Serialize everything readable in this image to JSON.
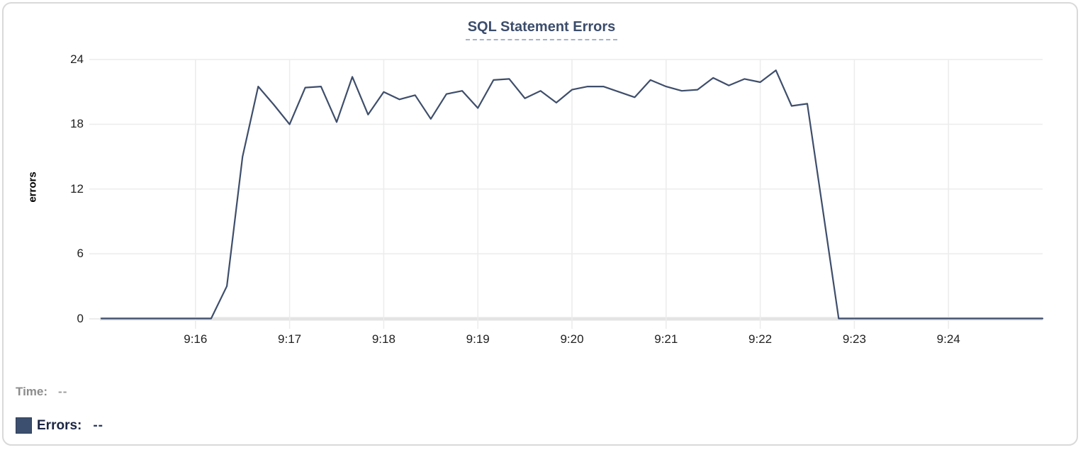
{
  "chart_data": {
    "type": "line",
    "title": "SQL Statement Errors",
    "xlabel": "",
    "ylabel": "errors",
    "ylim": [
      0,
      24
    ],
    "y_ticks": [
      0,
      6,
      12,
      18,
      24
    ],
    "x_ticks": [
      "9:16",
      "9:17",
      "9:18",
      "9:19",
      "9:20",
      "9:21",
      "9:22",
      "9:23",
      "9:24"
    ],
    "x_start": "9:15:00",
    "x_end": "9:25:00",
    "grid": true,
    "legend_position": "bottom-left",
    "series": [
      {
        "name": "Errors",
        "color": "#3e4e6b",
        "times": [
          "9:15:00",
          "9:15:10",
          "9:15:20",
          "9:15:30",
          "9:15:40",
          "9:15:50",
          "9:16:00",
          "9:16:10",
          "9:16:20",
          "9:16:30",
          "9:16:40",
          "9:16:50",
          "9:17:00",
          "9:17:10",
          "9:17:20",
          "9:17:30",
          "9:17:40",
          "9:17:50",
          "9:18:00",
          "9:18:10",
          "9:18:20",
          "9:18:30",
          "9:18:40",
          "9:18:50",
          "9:19:00",
          "9:19:10",
          "9:19:20",
          "9:19:30",
          "9:19:40",
          "9:19:50",
          "9:20:00",
          "9:20:10",
          "9:20:20",
          "9:20:30",
          "9:20:40",
          "9:20:50",
          "9:21:00",
          "9:21:10",
          "9:21:20",
          "9:21:30",
          "9:21:40",
          "9:21:50",
          "9:22:00",
          "9:22:10",
          "9:22:20",
          "9:22:30",
          "9:22:40",
          "9:22:50",
          "9:23:00",
          "9:23:10",
          "9:23:20",
          "9:23:30",
          "9:23:40",
          "9:23:50",
          "9:24:00",
          "9:24:10",
          "9:24:20",
          "9:24:30",
          "9:24:40",
          "9:24:50",
          "9:25:00"
        ],
        "values": [
          0,
          0,
          0,
          0,
          0,
          0,
          0,
          0,
          3,
          15,
          21.5,
          19.8,
          18,
          21.4,
          21.5,
          18.2,
          22.4,
          18.9,
          21,
          20.3,
          20.7,
          18.5,
          20.8,
          21.1,
          19.5,
          22.1,
          22.2,
          20.4,
          21.1,
          20,
          21.2,
          21.5,
          21.5,
          21,
          20.5,
          22.1,
          21.5,
          21.1,
          21.2,
          22.3,
          21.6,
          22.2,
          21.9,
          23,
          19.7,
          19.9,
          10,
          0,
          0,
          0,
          0,
          0,
          0,
          0,
          0,
          0,
          0,
          0,
          0,
          0,
          0
        ]
      }
    ]
  },
  "tooltip_panel": {
    "time_label": "Time:",
    "time_value": "--",
    "errors_label": "Errors:",
    "errors_value": "--",
    "swatch_color": "#3d4f6e"
  }
}
